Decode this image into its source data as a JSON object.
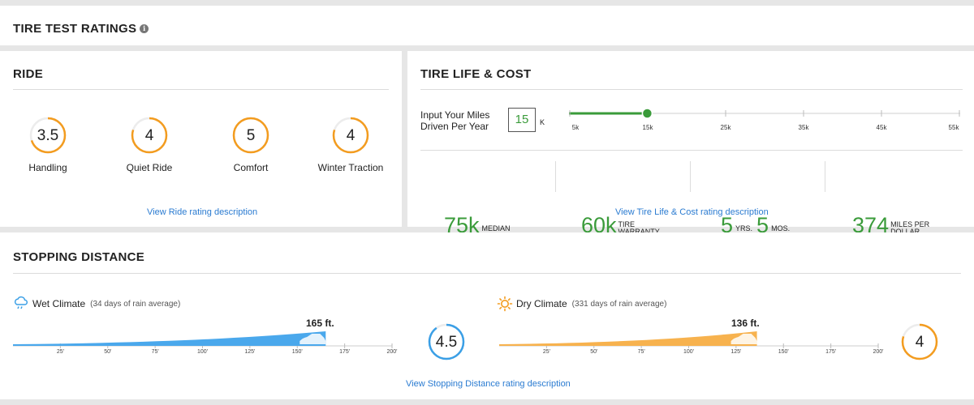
{
  "header": {
    "title": "TIRE TEST RATINGS",
    "info_icon": "info-icon"
  },
  "ride": {
    "title": "RIDE",
    "gauges": [
      {
        "value": "3.5",
        "fraction": 0.7,
        "label": "Handling"
      },
      {
        "value": "4",
        "fraction": 0.8,
        "label": "Quiet Ride"
      },
      {
        "value": "5",
        "fraction": 1.0,
        "label": "Comfort"
      },
      {
        "value": "4",
        "fraction": 0.8,
        "label": "Winter Traction"
      }
    ],
    "link": "View Ride rating description"
  },
  "tire_life": {
    "title": "TIRE LIFE & COST",
    "miles_label_line1": "Input Your Miles",
    "miles_label_line2": "Driven Per Year",
    "miles_value": "15",
    "miles_unit": "K",
    "slider_ticks": [
      "5k",
      "15k",
      "25k",
      "35k",
      "45k",
      "55k"
    ],
    "slider_value": 15,
    "slider_min": 5,
    "slider_max": 55,
    "stats": {
      "median_value": "75k",
      "median_label": "MEDIAN",
      "warranty_value": "60k",
      "warranty_label_1": "TIRE",
      "warranty_label_2": "WARRANTY",
      "years_value": "5",
      "years_label": "YRS.",
      "months_value": "5",
      "months_label": "MOS.",
      "mpd_value": "374",
      "mpd_label_1": "MILES PER",
      "mpd_label_2": "DOLLAR"
    },
    "link": "View Tire Life & Cost rating description"
  },
  "stopping": {
    "title": "STOPPING DISTANCE",
    "wet": {
      "title": "Wet Climate",
      "subtitle": "(34 days of rain average)",
      "distance": 165,
      "distance_label": "165 ft.",
      "rating": "4.5",
      "rating_fraction": 0.9,
      "color": "#4aa8ec",
      "icon": "cloud-rain-icon"
    },
    "dry": {
      "title": "Dry Climate",
      "subtitle": "(331 days of rain average)",
      "distance": 136,
      "distance_label": "136 ft.",
      "rating": "4",
      "rating_fraction": 0.8,
      "color": "#f7b24e",
      "icon": "sun-icon"
    },
    "ticks": [
      "25'",
      "50'",
      "75'",
      "100'",
      "125'",
      "150'",
      "175'",
      "200'"
    ],
    "scale_max": 200,
    "link": "View Stopping Distance rating description"
  },
  "colors": {
    "accent_orange": "#f39c1f",
    "accent_blue": "#3a9fe6",
    "green": "#3a9b3a",
    "link": "#2a7bd1"
  }
}
